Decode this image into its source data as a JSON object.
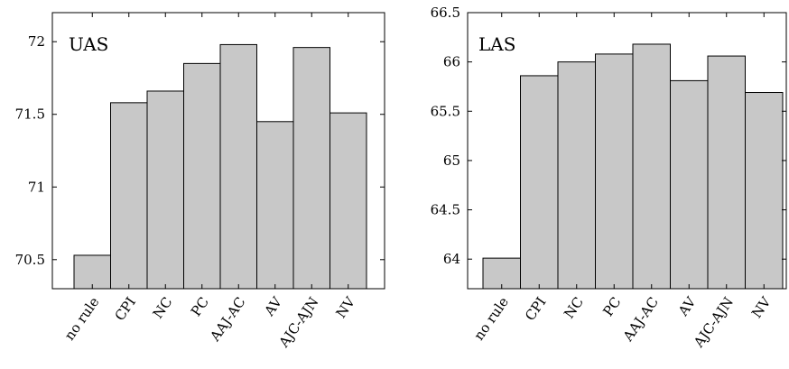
{
  "chart_data": [
    {
      "type": "bar",
      "title": "UAS",
      "categories": [
        "no rule",
        "CPI",
        "NC",
        "PC",
        "AAJ-AC",
        "AV",
        "AJC-AJN",
        "NV"
      ],
      "values": [
        70.53,
        71.58,
        71.66,
        71.85,
        71.98,
        71.45,
        71.96,
        71.51
      ],
      "yticks": [
        70.5,
        71,
        71.5,
        72
      ],
      "ytick_labels": [
        "70.5",
        "71",
        "71.5",
        "72"
      ],
      "ylim": [
        70.3,
        72.2
      ],
      "bar_color": "#c8c8c8",
      "grid": false
    },
    {
      "type": "bar",
      "title": "LAS",
      "categories": [
        "no rule",
        "CPI",
        "NC",
        "PC",
        "AAJ-AC",
        "AV",
        "AJC-AJN",
        "NV"
      ],
      "values": [
        64.01,
        65.86,
        66.0,
        66.08,
        66.18,
        65.81,
        66.06,
        65.69
      ],
      "yticks": [
        64,
        64.5,
        65,
        65.5,
        66,
        66.5
      ],
      "ytick_labels": [
        "64",
        "64.5",
        "65",
        "65.5",
        "66",
        "66.5"
      ],
      "ylim": [
        63.7,
        66.5
      ],
      "bar_color": "#c8c8c8",
      "grid": false
    }
  ]
}
